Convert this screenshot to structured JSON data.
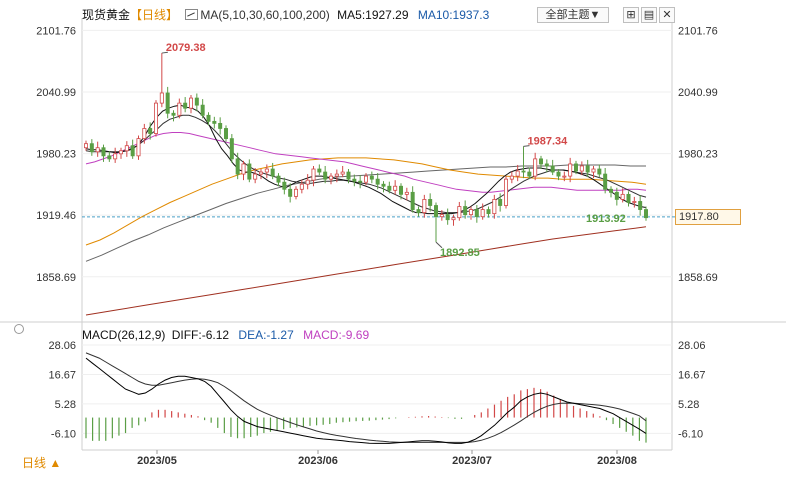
{
  "header": {
    "instrument": "现货黄金",
    "period_tag": "【日线】",
    "ma_label": "MA(5,10,30,60,100,200)",
    "ma5": "MA5:1927.29",
    "ma10": "MA10:1937.3",
    "theme_dropdown": "全部主题▼"
  },
  "macd_header": {
    "title": "MACD(26,12,9)",
    "diff": "DIFF:-6.12",
    "dea": "DEA:-1.27",
    "macd": "MACD:-9.69"
  },
  "footer": {
    "timeframe": "日线 ▲"
  },
  "colors": {
    "up": "#d24848",
    "down": "#5a9e45",
    "ma5": "#111111",
    "ma10": "#333333",
    "ma30": "#c040c0",
    "ma60": "#e08a00",
    "ma100": "#666666",
    "ma200": "#a03020",
    "dea": "#333333",
    "diff": "#000000",
    "accent": "#e08a00",
    "hline": "#4aa0c8"
  },
  "chart_data": {
    "type": "candlestick",
    "x_ticks": [
      "2023/05",
      "2023/06",
      "2023/07",
      "2023/08"
    ],
    "y_ticks": [
      "2101.76",
      "2040.99",
      "1980.23",
      "1919.46",
      "1858.69"
    ],
    "y_range": [
      1820,
      2112
    ],
    "current_price": "1917.80",
    "annotations": {
      "high": "2079.38",
      "low_june": "1892.85",
      "high_july": "1987.34",
      "low_aug": "1913.92"
    },
    "closes": [
      1990,
      1982,
      1986,
      1978,
      1975,
      1980,
      1983,
      1988,
      1978,
      1995,
      2005,
      2000,
      2030,
      2040,
      2020,
      2018,
      2030,
      2025,
      2035,
      2028,
      2018,
      2012,
      2010,
      2005,
      1995,
      1975,
      1960,
      1970,
      1955,
      1960,
      1962,
      1965,
      1958,
      1952,
      1945,
      1938,
      1945,
      1950,
      1954,
      1965,
      1962,
      1955,
      1958,
      1960,
      1962,
      1955,
      1953,
      1952,
      1958,
      1955,
      1950,
      1948,
      1944,
      1948,
      1940,
      1942,
      1925,
      1922,
      1935,
      1929,
      1918,
      1920,
      1915,
      1917,
      1928,
      1920,
      1925,
      1918,
      1925,
      1921,
      1935,
      1929,
      1955,
      1958,
      1963,
      1962,
      1958,
      1975,
      1970,
      1968,
      1962,
      1958,
      1958,
      1970,
      1963,
      1968,
      1962,
      1965,
      1960,
      1945,
      1942,
      1935,
      1940,
      1932,
      1933,
      1925,
      1917
    ],
    "ma5_path": [
      1985,
      1984,
      1984,
      1983,
      1982,
      1981,
      1982,
      1983,
      1985,
      1990,
      1998,
      2008,
      2016,
      2022,
      2025,
      2027,
      2028,
      2026,
      2025,
      2022,
      2016,
      2007,
      1995,
      1985,
      1978,
      1970,
      1964,
      1962,
      1962,
      1960,
      1957,
      1953,
      1950,
      1948,
      1947,
      1950,
      1953,
      1955,
      1957,
      1958,
      1958,
      1957,
      1956,
      1955,
      1954,
      1953,
      1951,
      1949,
      1947,
      1944,
      1941,
      1937,
      1933,
      1930,
      1927,
      1924,
      1922,
      1922,
      1921,
      1921,
      1921,
      1921,
      1921,
      1922,
      1924,
      1927,
      1931,
      1936,
      1941,
      1947,
      1953,
      1958,
      1962,
      1964,
      1965,
      1966,
      1966,
      1966,
      1965,
      1964,
      1964,
      1964,
      1963,
      1962,
      1960,
      1958,
      1955,
      1951,
      1947,
      1943,
      1939,
      1935,
      1932,
      1930,
      1928,
      1927
    ],
    "ma10_path": [
      1983,
      1982,
      1982,
      1982,
      1982,
      1982,
      1983,
      1985,
      1988,
      1993,
      1999,
      2004,
      2010,
      2014,
      2016,
      2018,
      2018,
      2016,
      2013,
      2009,
      2003,
      1996,
      1988,
      1980,
      1974,
      1969,
      1965,
      1962,
      1960,
      1958,
      1956,
      1955,
      1953,
      1952,
      1951,
      1951,
      1952,
      1953,
      1953,
      1954,
      1954,
      1953,
      1952,
      1951,
      1950,
      1948,
      1946,
      1943,
      1940,
      1937,
      1934,
      1931,
      1928,
      1926,
      1924,
      1923,
      1922,
      1922,
      1922,
      1923,
      1924,
      1926,
      1929,
      1932,
      1936,
      1940,
      1945,
      1949,
      1953,
      1956,
      1959,
      1961,
      1963,
      1964,
      1964,
      1963,
      1962,
      1961,
      1960,
      1958,
      1956,
      1954,
      1951,
      1948,
      1945,
      1942,
      1939,
      1937.3
    ],
    "ma30_path": [
      1970,
      1972,
      1975,
      1978,
      1982,
      1986,
      1990,
      1994,
      1998,
      2000,
      2001,
      2001,
      2000,
      1998,
      1996,
      1994,
      1992,
      1990,
      1988,
      1986,
      1984,
      1982,
      1980,
      1979,
      1978,
      1977,
      1976,
      1975,
      1974,
      1973,
      1972,
      1970,
      1968,
      1966,
      1964,
      1962,
      1960,
      1958,
      1955,
      1953,
      1951,
      1949,
      1947,
      1945,
      1944,
      1943,
      1942,
      1942,
      1943,
      1944,
      1945,
      1946,
      1947,
      1947,
      1947,
      1946,
      1945,
      1944,
      1944,
      1944,
      1944,
      1944,
      1944,
      1945,
      1945,
      1944
    ],
    "ma60_path": [
      1890,
      1895,
      1902,
      1910,
      1918,
      1925,
      1932,
      1938,
      1944,
      1950,
      1955,
      1960,
      1964,
      1967,
      1970,
      1972,
      1974,
      1975,
      1976,
      1976,
      1976,
      1975,
      1974,
      1972,
      1970,
      1967,
      1964,
      1962,
      1960,
      1959,
      1958,
      1957,
      1956,
      1956,
      1955,
      1955,
      1955,
      1954,
      1953,
      1952,
      1950
    ],
    "ma100_path": [
      1874,
      1880,
      1887,
      1894,
      1900,
      1907,
      1913,
      1919,
      1925,
      1931,
      1936,
      1941,
      1945,
      1949,
      1952,
      1955,
      1957,
      1958,
      1959,
      1960,
      1961,
      1962,
      1963,
      1964,
      1965,
      1966,
      1967,
      1967,
      1968,
      1968,
      1968,
      1969,
      1969,
      1969,
      1969,
      1968,
      1968
    ],
    "ma200_path": [
      1821,
      1826,
      1831,
      1836,
      1841,
      1846,
      1851,
      1856,
      1861,
      1866,
      1871,
      1876,
      1881,
      1886,
      1891,
      1896,
      1900,
      1904,
      1908
    ],
    "macd": {
      "y_ticks": [
        "28.06",
        "16.67",
        "5.28",
        "-6.10"
      ],
      "y_range": [
        -11,
        30
      ],
      "diff": [
        23,
        21,
        19,
        17,
        15,
        13,
        11,
        10,
        9,
        9.5,
        11,
        13,
        14.5,
        15.5,
        16,
        16,
        15.5,
        15,
        14,
        12,
        9,
        6,
        3,
        0.5,
        -1.5,
        -2.5,
        -3.5,
        -4,
        -4.5,
        -5,
        -5.5,
        -6,
        -6.5,
        -7,
        -7.5,
        -8,
        -8.3,
        -8.5,
        -8.7,
        -9,
        -9.3,
        -9.5,
        -9.7,
        -9.9,
        -10,
        -10,
        -10,
        -9.8,
        -9.6,
        -9.4,
        -9.2,
        -9,
        -9,
        -9.2,
        -9.4,
        -9.8,
        -10,
        -10,
        -9.5,
        -8.5,
        -7,
        -5,
        -3,
        -0.5,
        2,
        4,
        6.5,
        8,
        9,
        9.5,
        9,
        8,
        7,
        6,
        5.5,
        5,
        4.5,
        4,
        3.5,
        2.5,
        1.5,
        0,
        -1.5,
        -3,
        -4.5,
        -6.12
      ],
      "dea": [
        25,
        24,
        23,
        21.5,
        20,
        18.5,
        17,
        15.5,
        14,
        13,
        12.5,
        12.5,
        13,
        13.5,
        14,
        14.5,
        14.8,
        15,
        14.8,
        14.3,
        13.5,
        12,
        10.3,
        8.4,
        6.5,
        4.8,
        3.2,
        2,
        0.9,
        -0.1,
        -1,
        -1.9,
        -2.8,
        -3.6,
        -4.4,
        -5.2,
        -5.8,
        -6.4,
        -6.9,
        -7.3,
        -7.7,
        -8.1,
        -8.4,
        -8.7,
        -9,
        -9.2,
        -9.4,
        -9.5,
        -9.6,
        -9.6,
        -9.6,
        -9.6,
        -9.6,
        -9.6,
        -9.6,
        -9.6,
        -9.6,
        -9.6,
        -9.6,
        -9.3,
        -8.8,
        -8,
        -7,
        -5.8,
        -4.4,
        -2.9,
        -1.3,
        0.4,
        2,
        3.3,
        4.4,
        5.1,
        5.5,
        5.6,
        5.5,
        5.4,
        5.2,
        5,
        4.8,
        4.4,
        3.9,
        3.3,
        2.5,
        1.6,
        0.7,
        -1.27
      ],
      "hist": [
        -8,
        -9,
        -9,
        -9,
        -8,
        -7,
        -6,
        -4,
        -3,
        -1.5,
        2,
        3,
        3,
        2.5,
        2,
        1.5,
        1,
        0.5,
        -1,
        -2,
        -4,
        -6,
        -7.5,
        -8,
        -8,
        -7.5,
        -7,
        -6,
        -5.5,
        -5,
        -4.5,
        -4,
        -3.8,
        -3.5,
        -3.2,
        -3,
        -2.8,
        -2.5,
        -2,
        -1.8,
        -1.6,
        -1.4,
        -1.3,
        -1.2,
        -1,
        -0.8,
        -0.6,
        -0.3,
        0,
        0.2,
        0.3,
        0.5,
        0.6,
        0.4,
        0.2,
        -0.2,
        -0.5,
        -0.5,
        0,
        1,
        2,
        3.5,
        5,
        6.5,
        8,
        9,
        10.5,
        11,
        11.5,
        11,
        10,
        8.5,
        7,
        5.5,
        4.5,
        3.5,
        2.5,
        1.5,
        0.5,
        -1,
        -2.5,
        -4,
        -5.5,
        -7,
        -9,
        -9.69
      ]
    }
  }
}
